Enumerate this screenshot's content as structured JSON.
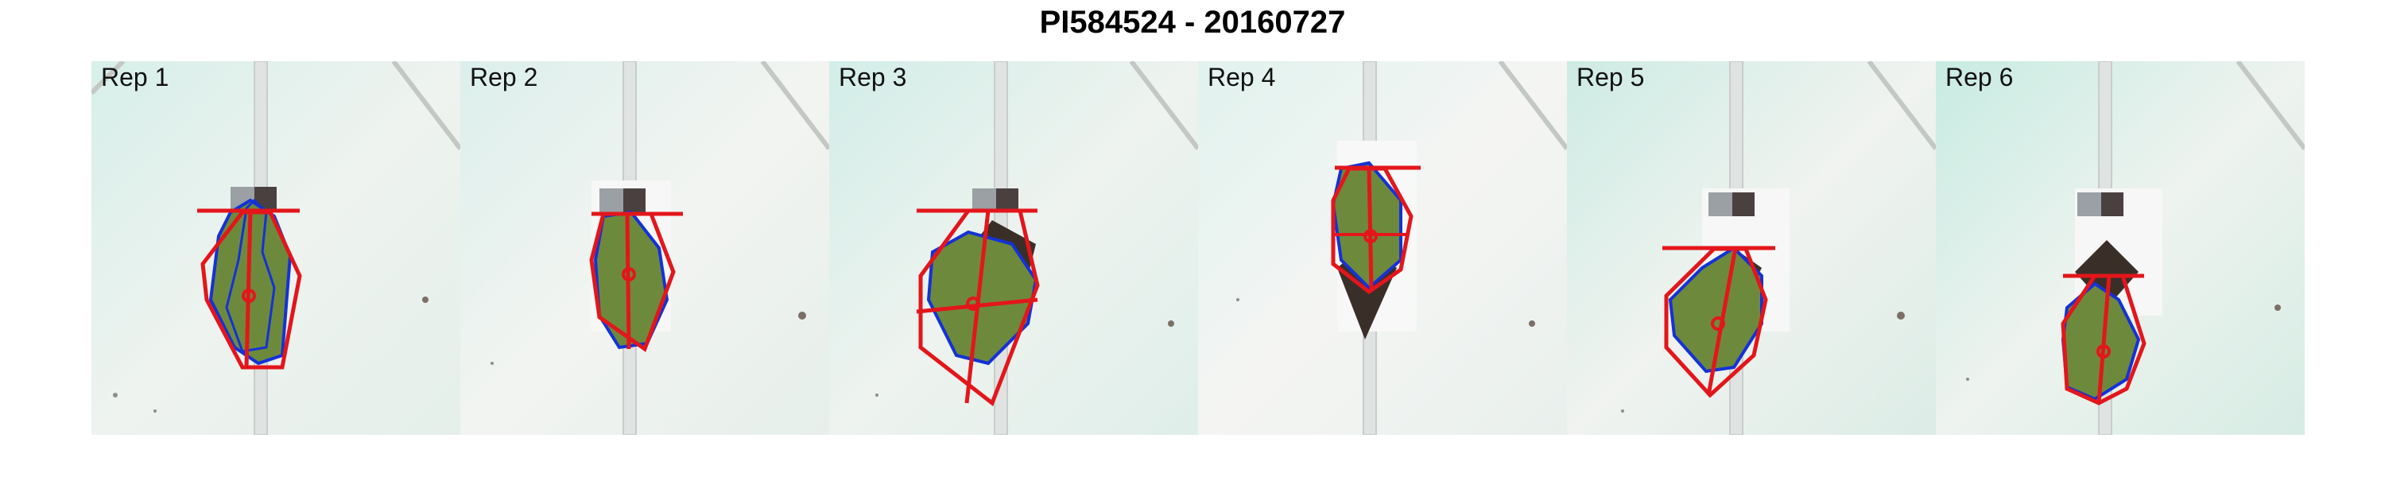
{
  "title": "PI584524 - 20160727",
  "panels": [
    {
      "label": "Rep 1",
      "tint": "#dff1ee"
    },
    {
      "label": "Rep 2",
      "tint": "#e3f3f0"
    },
    {
      "label": "Rep 3",
      "tint": "#d8efeb"
    },
    {
      "label": "Rep 4",
      "tint": "#e6f4f1"
    },
    {
      "label": "Rep 5",
      "tint": "#d5efe9"
    },
    {
      "label": "Rep 6",
      "tint": "#cdeee6"
    }
  ],
  "colors": {
    "hull": "#e3161b",
    "contour": "#1432d6",
    "plant": "#6a8a3a",
    "soil": "#3a2f28",
    "background": "#f1f3ef"
  }
}
